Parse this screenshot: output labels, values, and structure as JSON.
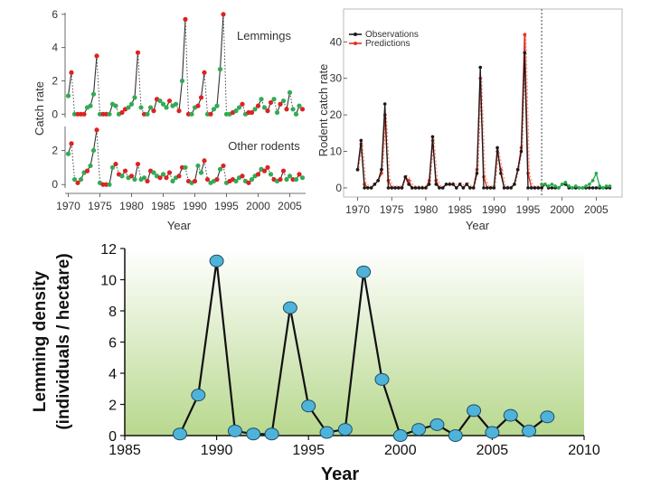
{
  "colors": {
    "observed": "#1a1a1a",
    "green_dot": "#33aa55",
    "red_dot": "#dd2222",
    "prediction": "#dd3322",
    "forecast": "#22aa44",
    "density_dot": "#4fb3d9",
    "density_line": "#111111"
  },
  "chart_data": [
    {
      "type": "line",
      "xlabel": "Year",
      "ylabel": "Catch rate",
      "x_ticks": [
        1970,
        1975,
        1980,
        1985,
        1990,
        1995,
        2000,
        2005
      ],
      "xlim": [
        1969.5,
        2007.5
      ],
      "panels": [
        {
          "label": "Lemmings",
          "y_ticks": [
            0,
            2,
            4,
            6
          ],
          "ylim": [
            -0.2,
            6.1
          ],
          "x": [
            1970,
            1970.5,
            1971,
            1971.5,
            1972,
            1972.5,
            1973,
            1973.5,
            1974,
            1974.5,
            1975,
            1975.5,
            1976,
            1976.5,
            1977,
            1977.5,
            1978,
            1978.5,
            1979,
            1979.5,
            1980,
            1980.5,
            1981,
            1981.5,
            1982,
            1982.5,
            1983,
            1983.5,
            1984,
            1984.5,
            1985,
            1985.5,
            1986,
            1986.5,
            1987,
            1987.5,
            1988,
            1988.5,
            1989,
            1989.5,
            1990,
            1990.5,
            1991,
            1991.5,
            1992,
            1992.5,
            1993,
            1993.5,
            1994,
            1994.5,
            1995,
            1995.5,
            1996,
            1996.5,
            1997,
            1997.5,
            1998,
            1998.5,
            1999,
            1999.5,
            2000,
            2000.5,
            2001,
            2001.5,
            2002,
            2002.5,
            2003,
            2003.5,
            2004,
            2004.5,
            2005,
            2005.5,
            2006,
            2006.5,
            2007
          ],
          "values": [
            1.1,
            2.5,
            0.0,
            0.0,
            0.0,
            0.0,
            0.4,
            0.5,
            1.2,
            3.5,
            0.0,
            0.0,
            0.0,
            0.0,
            0.6,
            0.5,
            0.0,
            0.1,
            0.3,
            0.4,
            0.6,
            1.0,
            3.7,
            0.4,
            0.0,
            0.0,
            0.4,
            0.2,
            0.9,
            0.8,
            0.6,
            0.4,
            0.8,
            0.5,
            0.6,
            0.2,
            2.0,
            5.7,
            0.0,
            0.0,
            0.4,
            0.5,
            1.0,
            2.5,
            0.0,
            0.0,
            0.3,
            0.5,
            2.7,
            6.0,
            0.0,
            0.0,
            0.1,
            0.2,
            0.4,
            0.6,
            0.0,
            0.1,
            0.1,
            0.3,
            0.5,
            0.9,
            0.4,
            0.2,
            0.7,
            0.9,
            0.1,
            0.6,
            0.8,
            0.3,
            1.3,
            0.3,
            0.0,
            0.5,
            0.3
          ],
          "dot_colors": [
            "green",
            "red",
            "green",
            "red",
            "red",
            "red",
            "green",
            "green",
            "green",
            "red",
            "green",
            "red",
            "red",
            "green",
            "green",
            "green",
            "green",
            "red",
            "red",
            "green",
            "green",
            "green",
            "red",
            "green",
            "red",
            "green",
            "green",
            "red",
            "red",
            "green",
            "green",
            "green",
            "red",
            "green",
            "green",
            "red",
            "green",
            "red",
            "red",
            "green",
            "green",
            "red",
            "red",
            "red",
            "green",
            "red",
            "green",
            "green",
            "green",
            "red",
            "green",
            "green",
            "red",
            "green",
            "green",
            "red",
            "green",
            "red",
            "red",
            "green",
            "red",
            "green",
            "green",
            "red",
            "red",
            "green",
            "green",
            "red",
            "green",
            "red",
            "green",
            "green",
            "green",
            "green",
            "red"
          ]
        },
        {
          "label": "Other rodents",
          "y_ticks": [
            0,
            2
          ],
          "ylim": [
            -0.2,
            3.4
          ],
          "x": [
            1970,
            1970.5,
            1971,
            1971.5,
            1972,
            1972.5,
            1973,
            1973.5,
            1974,
            1974.5,
            1975,
            1975.5,
            1976,
            1976.5,
            1977,
            1977.5,
            1978,
            1978.5,
            1979,
            1979.5,
            1980,
            1980.5,
            1981,
            1981.5,
            1982,
            1982.5,
            1983,
            1983.5,
            1984,
            1984.5,
            1985,
            1985.5,
            1986,
            1986.5,
            1987,
            1987.5,
            1988,
            1988.5,
            1989,
            1989.5,
            1990,
            1990.5,
            1991,
            1991.5,
            1992,
            1992.5,
            1993,
            1993.5,
            1994,
            1994.5,
            1995,
            1995.5,
            1996,
            1996.5,
            1997,
            1997.5,
            1998,
            1998.5,
            1999,
            1999.5,
            2000,
            2000.5,
            2001,
            2001.5,
            2002,
            2002.5,
            2003,
            2003.5,
            2004,
            2004.5,
            2005,
            2005.5,
            2006,
            2006.5,
            2007
          ],
          "values": [
            1.8,
            2.4,
            0.3,
            0.1,
            0.3,
            0.7,
            0.8,
            1.1,
            2.0,
            3.2,
            0.1,
            0.0,
            0.0,
            0.0,
            1.0,
            1.2,
            0.6,
            0.5,
            0.8,
            0.4,
            0.5,
            0.3,
            1.2,
            0.3,
            0.4,
            0.2,
            0.8,
            0.7,
            0.5,
            0.4,
            0.6,
            0.4,
            0.7,
            0.2,
            0.4,
            0.5,
            1.0,
            1.0,
            0.2,
            0.1,
            0.2,
            1.1,
            0.7,
            1.4,
            0.3,
            0.1,
            0.2,
            0.3,
            0.9,
            1.1,
            0.1,
            0.2,
            0.3,
            0.2,
            0.4,
            0.5,
            0.2,
            0.1,
            0.3,
            0.5,
            0.6,
            0.9,
            0.8,
            1.0,
            0.6,
            0.3,
            0.2,
            0.3,
            0.8,
            0.3,
            0.5,
            0.3,
            0.3,
            0.6,
            0.4
          ],
          "dot_colors": [
            "green",
            "red",
            "green",
            "red",
            "green",
            "green",
            "red",
            "green",
            "green",
            "red",
            "green",
            "red",
            "red",
            "green",
            "green",
            "red",
            "red",
            "green",
            "red",
            "green",
            "red",
            "green",
            "red",
            "green",
            "green",
            "red",
            "red",
            "green",
            "green",
            "red",
            "green",
            "red",
            "red",
            "green",
            "green",
            "red",
            "red",
            "green",
            "red",
            "green",
            "red",
            "green",
            "green",
            "red",
            "red",
            "green",
            "green",
            "red",
            "green",
            "red",
            "green",
            "red",
            "red",
            "green",
            "green",
            "red",
            "green",
            "red",
            "green",
            "green",
            "red",
            "green",
            "red",
            "red",
            "green",
            "red",
            "green",
            "red",
            "red",
            "green",
            "green",
            "red",
            "green",
            "red",
            "green"
          ]
        }
      ]
    },
    {
      "type": "line",
      "xlabel": "Year",
      "ylabel": "Rodent catch rate",
      "x_ticks": [
        1970,
        1975,
        1980,
        1985,
        1990,
        1995,
        2000,
        2005
      ],
      "y_ticks": [
        0,
        10,
        20,
        30,
        40
      ],
      "xlim": [
        1969,
        2008
      ],
      "ylim": [
        -2,
        48
      ],
      "vline_x": 1997,
      "legend": "top-left",
      "series": [
        {
          "name": "Observations",
          "x": [
            1970,
            1970.5,
            1971,
            1971.5,
            1972,
            1972.5,
            1973,
            1973.5,
            1974,
            1974.5,
            1975,
            1975.5,
            1976,
            1976.5,
            1977,
            1977.5,
            1978,
            1978.5,
            1979,
            1979.5,
            1980,
            1980.5,
            1981,
            1981.5,
            1982,
            1982.5,
            1983,
            1983.5,
            1984,
            1984.5,
            1985,
            1985.5,
            1986,
            1986.5,
            1987,
            1987.5,
            1988,
            1988.5,
            1989,
            1989.5,
            1990,
            1990.5,
            1991,
            1991.5,
            1992,
            1992.5,
            1993,
            1993.5,
            1994,
            1994.5,
            1995,
            1995.5,
            1996,
            1996.5,
            1997,
            1997.5,
            1998,
            1998.5,
            1999,
            1999.5,
            2000,
            2000.5,
            2001,
            2001.5,
            2002,
            2002.5,
            2003,
            2003.5,
            2004,
            2004.5,
            2005,
            2005.5,
            2006,
            2006.5,
            2007
          ],
          "values": [
            5,
            13,
            0,
            0,
            0,
            1,
            2,
            5,
            23,
            0,
            0,
            0,
            0,
            0,
            3,
            1,
            0,
            0,
            0,
            0,
            0,
            1,
            14,
            1,
            0,
            0,
            1,
            1,
            1,
            0,
            1,
            0,
            1,
            0,
            0,
            4,
            33,
            0,
            0,
            0,
            0,
            11,
            4,
            0,
            0,
            0,
            1,
            5,
            10,
            37,
            0,
            0,
            0,
            0,
            0,
            1,
            0,
            0,
            0,
            0,
            1,
            1,
            0,
            0,
            0,
            0,
            0,
            0,
            0,
            0,
            0,
            0,
            0,
            0,
            0
          ]
        },
        {
          "name": "Predictions",
          "x": [
            1970,
            1970.5,
            1971,
            1971.5,
            1972,
            1972.5,
            1973,
            1973.5,
            1974,
            1974.5,
            1975,
            1975.5,
            1976,
            1976.5,
            1977,
            1977.5,
            1978,
            1978.5,
            1979,
            1979.5,
            1980,
            1980.5,
            1981,
            1981.5,
            1982,
            1982.5,
            1983,
            1983.5,
            1984,
            1984.5,
            1985,
            1985.5,
            1986,
            1986.5,
            1987,
            1987.5,
            1988,
            1988.5,
            1989,
            1989.5,
            1990,
            1990.5,
            1991,
            1991.5,
            1992,
            1992.5,
            1993,
            1993.5,
            1994,
            1994.5,
            1995,
            1995.5,
            1996,
            1996.5,
            1997
          ],
          "values": [
            5,
            12,
            1,
            0,
            0,
            1,
            2,
            4,
            20,
            2,
            0,
            0,
            0,
            0,
            3,
            2,
            0,
            0,
            0,
            0,
            0,
            2,
            13,
            2,
            0,
            0,
            1,
            1,
            1,
            0,
            1,
            0,
            1,
            0,
            0,
            5,
            30,
            3,
            0,
            0,
            0,
            10,
            5,
            0,
            0,
            0,
            1,
            5,
            11,
            42,
            4,
            0,
            0,
            0,
            0
          ]
        },
        {
          "x": [
            1997,
            1997.5,
            1998,
            1998.5,
            1999,
            1999.5,
            2000,
            2000.5,
            2001,
            2001.5,
            2002,
            2002.5,
            2003,
            2003.5,
            2004,
            2004.5,
            2005,
            2005.5,
            2006,
            2006.5,
            2007
          ],
          "values": [
            1,
            1,
            0.5,
            1,
            0.5,
            0,
            1,
            1.5,
            0.5,
            0,
            0.5,
            0,
            0,
            0.5,
            1,
            2,
            4,
            0.5,
            0,
            0.5,
            0.5
          ]
        }
      ]
    },
    {
      "type": "line",
      "xlabel": "Year",
      "ylabel_line1": "Lemming density",
      "ylabel_line2": "(individuals / hectare)",
      "x_ticks": [
        1985,
        1990,
        1995,
        2000,
        2005,
        2010
      ],
      "y_ticks": [
        0,
        2,
        4,
        6,
        8,
        10,
        12
      ],
      "xlim": [
        1985,
        2010
      ],
      "ylim": [
        0,
        12
      ],
      "x": [
        1988,
        1989,
        1990,
        1991,
        1992,
        1993,
        1994,
        1995,
        1996,
        1997,
        1998,
        1999,
        2000,
        2001,
        2002,
        2003,
        2004,
        2005,
        2006,
        2007,
        2008
      ],
      "values": [
        0.1,
        2.6,
        11.2,
        0.3,
        0.1,
        0.1,
        8.2,
        1.9,
        0.2,
        0.4,
        10.5,
        3.6,
        0.0,
        0.4,
        0.7,
        0.0,
        1.6,
        0.2,
        1.3,
        0.3,
        1.2
      ]
    }
  ]
}
